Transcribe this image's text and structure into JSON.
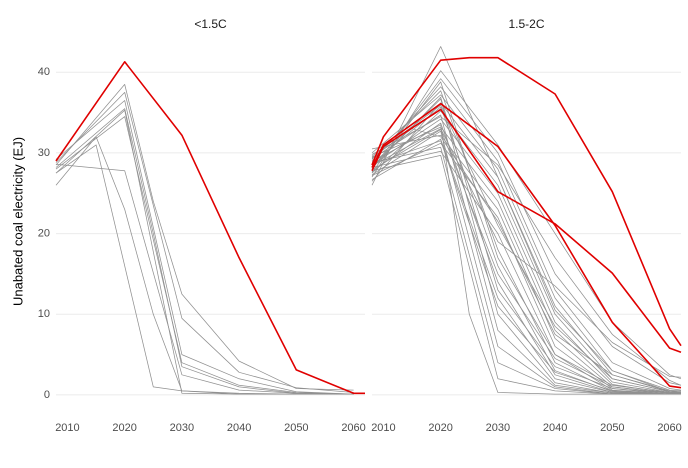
{
  "chart_data": {
    "type": "line",
    "ylabel": "Unabated coal electricity (EJ)",
    "xlabel": "",
    "x_ticks": [
      2010,
      2020,
      2030,
      2040,
      2050,
      2060
    ],
    "y_ticks": [
      0,
      10,
      20,
      30,
      40
    ],
    "xlim": [
      2008,
      2062
    ],
    "ylim": [
      -1,
      44
    ],
    "colors": {
      "highlight": "#e00000",
      "background": "#909090",
      "grid": "#ebebeb"
    },
    "panels": [
      {
        "title": "<1.5C",
        "highlight": [
          {
            "x": [
              2008,
              2020,
              2030,
              2040,
              2050,
              2060,
              2062
            ],
            "y": [
              29,
              41.3,
              32.2,
              17,
              3.1,
              0.2,
              0.2
            ]
          }
        ],
        "series": [
          {
            "x": [
              2008,
              2020,
              2025,
              2030,
              2040,
              2050,
              2060
            ],
            "y": [
              28.5,
              38.5,
              24,
              12.5,
              4.2,
              0.8,
              0.6
            ]
          },
          {
            "x": [
              2008,
              2020,
              2030,
              2040,
              2050,
              2060
            ],
            "y": [
              28.8,
              37.5,
              9.5,
              2.8,
              0.9,
              0.3
            ]
          },
          {
            "x": [
              2008,
              2020,
              2030,
              2040,
              2050,
              2060
            ],
            "y": [
              29.2,
              36.5,
              5,
              2.0,
              0.4,
              0.1
            ]
          },
          {
            "x": [
              2008,
              2020,
              2025,
              2030,
              2040,
              2050,
              2060
            ],
            "y": [
              28.2,
              35.5,
              20,
              3.5,
              1.0,
              0.2,
              0.1
            ]
          },
          {
            "x": [
              2008,
              2020,
              2030,
              2040,
              2050,
              2060
            ],
            "y": [
              27.5,
              35.3,
              0.2,
              0.1,
              0.1,
              0.1
            ]
          },
          {
            "x": [
              2008,
              2015,
              2020,
              2025,
              2030,
              2040,
              2050,
              2060
            ],
            "y": [
              26,
              32,
              23,
              10,
              0.5,
              0.1,
              0.1,
              0.1
            ]
          },
          {
            "x": [
              2008,
              2015,
              2025,
              2030,
              2040,
              2050,
              2060
            ],
            "y": [
              27.5,
              31,
              1.0,
              0.5,
              0.2,
              0.1,
              0.1
            ]
          },
          {
            "x": [
              2008,
              2020,
              2030,
              2040,
              2050,
              2060
            ],
            "y": [
              28.6,
              27.8,
              2.5,
              0.6,
              0.2,
              0.1
            ]
          },
          {
            "x": [
              2008,
              2020,
              2030,
              2040,
              2050,
              2060
            ],
            "y": [
              28.0,
              34.5,
              4.0,
              1.2,
              0.3,
              0.1
            ]
          }
        ]
      },
      {
        "title": "1.5-2C",
        "highlight": [
          {
            "x": [
              2008,
              2010,
              2020,
              2025,
              2030,
              2040,
              2050,
              2060,
              2062
            ],
            "y": [
              28.5,
              32,
              41.5,
              41.8,
              41.8,
              37.3,
              25.2,
              8.2,
              6.1
            ]
          },
          {
            "x": [
              2008,
              2010,
              2020,
              2030,
              2040,
              2050,
              2060,
              2062
            ],
            "y": [
              28.2,
              31,
              36.1,
              30.8,
              21,
              9,
              1.1,
              0.9
            ]
          },
          {
            "x": [
              2008,
              2010,
              2020,
              2030,
              2040,
              2050,
              2060,
              2062
            ],
            "y": [
              27.8,
              30.8,
              35.4,
              25.2,
              21.2,
              15.1,
              5.8,
              5.3
            ]
          }
        ],
        "series": [
          {
            "x": [
              2008,
              2020,
              2030,
              2040,
              2050,
              2060,
              2062
            ],
            "y": [
              26.0,
              43.2,
              27,
              10.5,
              3,
              0.4,
              0.3
            ]
          },
          {
            "x": [
              2008,
              2020,
              2030,
              2040,
              2050,
              2060,
              2062
            ],
            "y": [
              27.0,
              40.2,
              31,
              20,
              9,
              2.5,
              2.0
            ]
          },
          {
            "x": [
              2008,
              2020,
              2030,
              2040,
              2050,
              2060,
              2062
            ],
            "y": [
              28.0,
              39.2,
              30,
              15,
              6,
              1.5,
              1.2
            ]
          },
          {
            "x": [
              2008,
              2020,
              2030,
              2040,
              2050,
              2060,
              2062
            ],
            "y": [
              29.0,
              38.2,
              29,
              13,
              4,
              0.8,
              0.6
            ]
          },
          {
            "x": [
              2008,
              2020,
              2030,
              2040,
              2050,
              2060,
              2062
            ],
            "y": [
              30.0,
              37.2,
              28,
              12,
              3,
              0.6,
              0.5
            ]
          },
          {
            "x": [
              2008,
              2020,
              2030,
              2040,
              2050,
              2060,
              2062
            ],
            "y": [
              26.5,
              36.2,
              27,
              11,
              2.5,
              0.5,
              0.4
            ]
          },
          {
            "x": [
              2008,
              2020,
              2030,
              2040,
              2050,
              2060,
              2062
            ],
            "y": [
              27.5,
              35.2,
              26,
              10,
              2,
              0.4,
              0.3
            ]
          },
          {
            "x": [
              2008,
              2020,
              2030,
              2040,
              2050,
              2060,
              2062
            ],
            "y": [
              28.5,
              34.2,
              25,
              9,
              1.6,
              0.3,
              0.2
            ]
          },
          {
            "x": [
              2008,
              2020,
              2030,
              2040,
              2050,
              2060,
              2062
            ],
            "y": [
              29.5,
              33.2,
              24,
              8,
              1.3,
              0.2,
              0.2
            ]
          },
          {
            "x": [
              2008,
              2020,
              2030,
              2040,
              2050,
              2060,
              2062
            ],
            "y": [
              30.5,
              32.2,
              23,
              7,
              1,
              0.2,
              0.1
            ]
          },
          {
            "x": [
              2008,
              2020,
              2030,
              2040,
              2050,
              2060,
              2062
            ],
            "y": [
              27.2,
              31.2,
              22,
              6,
              0.8,
              0.1,
              0.1
            ]
          },
          {
            "x": [
              2008,
              2020,
              2030,
              2040,
              2050,
              2060,
              2062
            ],
            "y": [
              28.2,
              30.2,
              20,
              5,
              0.6,
              0.1,
              0.1
            ]
          },
          {
            "x": [
              2008,
              2020,
              2030,
              2040,
              2050,
              2060,
              2062
            ],
            "y": [
              29.2,
              37.7,
              18,
              4,
              0.5,
              0.1,
              0.1
            ]
          },
          {
            "x": [
              2008,
              2020,
              2030,
              2040,
              2050,
              2060,
              2062
            ],
            "y": [
              28.7,
              35.7,
              16,
              3,
              0.4,
              0.1,
              0.1
            ]
          },
          {
            "x": [
              2008,
              2020,
              2030,
              2040,
              2050,
              2060,
              2062
            ],
            "y": [
              27.7,
              33.7,
              14,
              2.5,
              0.3,
              0.1,
              0.1
            ]
          },
          {
            "x": [
              2008,
              2020,
              2030,
              2040,
              2050,
              2060,
              2062
            ],
            "y": [
              26.7,
              31.7,
              12,
              2,
              0.3,
              0.1,
              0.1
            ]
          },
          {
            "x": [
              2008,
              2020,
              2030,
              2040,
              2050,
              2060,
              2062
            ],
            "y": [
              28.3,
              36.7,
              10,
              1.5,
              0.2,
              0.1,
              0.1
            ]
          },
          {
            "x": [
              2008,
              2020,
              2030,
              2040,
              2050,
              2060,
              2062
            ],
            "y": [
              29.3,
              34.7,
              8,
              1.2,
              0.2,
              0.1,
              0.1
            ]
          },
          {
            "x": [
              2008,
              2020,
              2030,
              2040,
              2050,
              2060,
              2062
            ],
            "y": [
              27.3,
              32.7,
              6,
              1,
              0.1,
              0.1,
              0.1
            ]
          },
          {
            "x": [
              2008,
              2020,
              2030,
              2040,
              2050,
              2060,
              2062
            ],
            "y": [
              28.8,
              30.7,
              4,
              0.8,
              0.1,
              0.1,
              0.1
            ]
          },
          {
            "x": [
              2008,
              2020,
              2030,
              2040,
              2050,
              2060,
              2062
            ],
            "y": [
              27.8,
              29.7,
              2,
              0.5,
              0.1,
              0.1,
              0.1
            ]
          },
          {
            "x": [
              2008,
              2020,
              2025,
              2030,
              2040,
              2050,
              2060,
              2062
            ],
            "y": [
              28.9,
              33.5,
              10,
              0.3,
              0.1,
              0.1,
              0.1,
              0.1
            ]
          },
          {
            "x": [
              2008,
              2015,
              2020,
              2030,
              2040,
              2050,
              2060,
              2062
            ],
            "y": [
              29.4,
              33,
              32,
              21.5,
              7.5,
              2.5,
              0.4,
              0.3
            ]
          },
          {
            "x": [
              2008,
              2020,
              2030,
              2040,
              2050,
              2060,
              2062
            ],
            "y": [
              28.4,
              33.0,
              19,
              13.5,
              6.5,
              2.3,
              2.2
            ]
          },
          {
            "x": [
              2008,
              2020,
              2030,
              2040,
              2050,
              2060,
              2062
            ],
            "y": [
              29.8,
              34.5,
              28.5,
              17,
              7.5,
              1.8,
              1.2
            ]
          },
          {
            "x": [
              2008,
              2020,
              2030,
              2040,
              2050,
              2060,
              2062
            ],
            "y": [
              27.6,
              38.8,
              17,
              5,
              1.2,
              0.3,
              0.2
            ]
          },
          {
            "x": [
              2008,
              2020,
              2030,
              2040,
              2050,
              2060,
              2062
            ],
            "y": [
              28.1,
              36.9,
              13,
              3.5,
              0.8,
              0.2,
              0.1
            ]
          },
          {
            "x": [
              2008,
              2020,
              2030,
              2040,
              2050,
              2060,
              2062
            ],
            "y": [
              29.6,
              35.9,
              21,
              8.5,
              2,
              0.4,
              0.3
            ]
          },
          {
            "x": [
              2008,
              2020,
              2030,
              2040,
              2050,
              2060,
              2062
            ],
            "y": [
              27.9,
              32.9,
              15,
              4.5,
              1,
              0.2,
              0.1
            ]
          },
          {
            "x": [
              2008,
              2020,
              2030,
              2040,
              2050,
              2060,
              2062
            ],
            "y": [
              28.6,
              31.5,
              11,
              2.8,
              0.5,
              0.1,
              0.1
            ]
          }
        ]
      }
    ]
  }
}
